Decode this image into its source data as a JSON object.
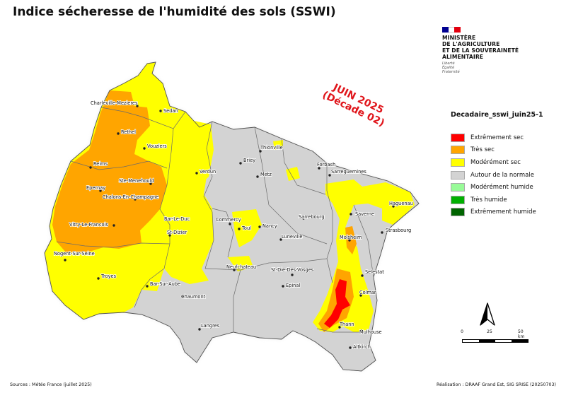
{
  "title": "Indice sécheresse de l'humidité des sols (SSWI)",
  "ministry": {
    "name": "MINISTÈRE\nDE L'AGRICULTURE\nET DE LA SOUVERAINETÉ\nALIMENTAIRE",
    "motto": "Liberté\nÉgalité\nFraternité",
    "flag_colors": [
      "#000091",
      "#ffffff",
      "#e1000f"
    ]
  },
  "date_stamp": {
    "line1": "JUIN 2025",
    "line2": "(Décade 02)",
    "color": "#e0151b"
  },
  "legend": {
    "title": "Decadaire_sswi_juin25-1",
    "items": [
      {
        "label": "Extrêmement sec",
        "color": "#ff0000"
      },
      {
        "label": "Très sec",
        "color": "#ffa500"
      },
      {
        "label": "Modérément sec",
        "color": "#ffff00"
      },
      {
        "label": "Autour de la normale",
        "color": "#d3d3d3"
      },
      {
        "label": "Modérément humide",
        "color": "#98fb98"
      },
      {
        "label": "Très humide",
        "color": "#00b000"
      },
      {
        "label": "Extrêmement humide",
        "color": "#006400"
      }
    ]
  },
  "cities": [
    "Charleville-Mezieres",
    "Sedan",
    "Rethel",
    "Vouziers",
    "Thionville",
    "Briey",
    "Forbach",
    "Reims",
    "Metz",
    "Sarreguemines",
    "Verdun",
    "Ste-Menehould",
    "Epernay",
    "Haguenau",
    "Saverne",
    "Chalons-En-Champagne",
    "Sarrebourg",
    "Strasbourg",
    "Commercy",
    "Bar-Le-Duc",
    "Nancy",
    "Toul",
    "Vitry-Le-Francois",
    "St-Dizier",
    "Luneville",
    "Molsheim",
    "Nogent-Sur-Seine",
    "Neufchateau",
    "St-Die-Des-Vosges",
    "Selestat",
    "Troyes",
    "Bar-Sur-Aube",
    "Epinal",
    "Colmar",
    "Chaumont",
    "Thann",
    "Mulhouse",
    "Langres",
    "Altkirch"
  ],
  "north_label": "N",
  "scale": {
    "labels": [
      "0",
      "25",
      "50 km"
    ]
  },
  "footer": {
    "sources": "Sources : Météo France (juillet 2025)",
    "credit": "Réalisation : DRAAF Grand Est, SIG SRISE (20250703)"
  }
}
